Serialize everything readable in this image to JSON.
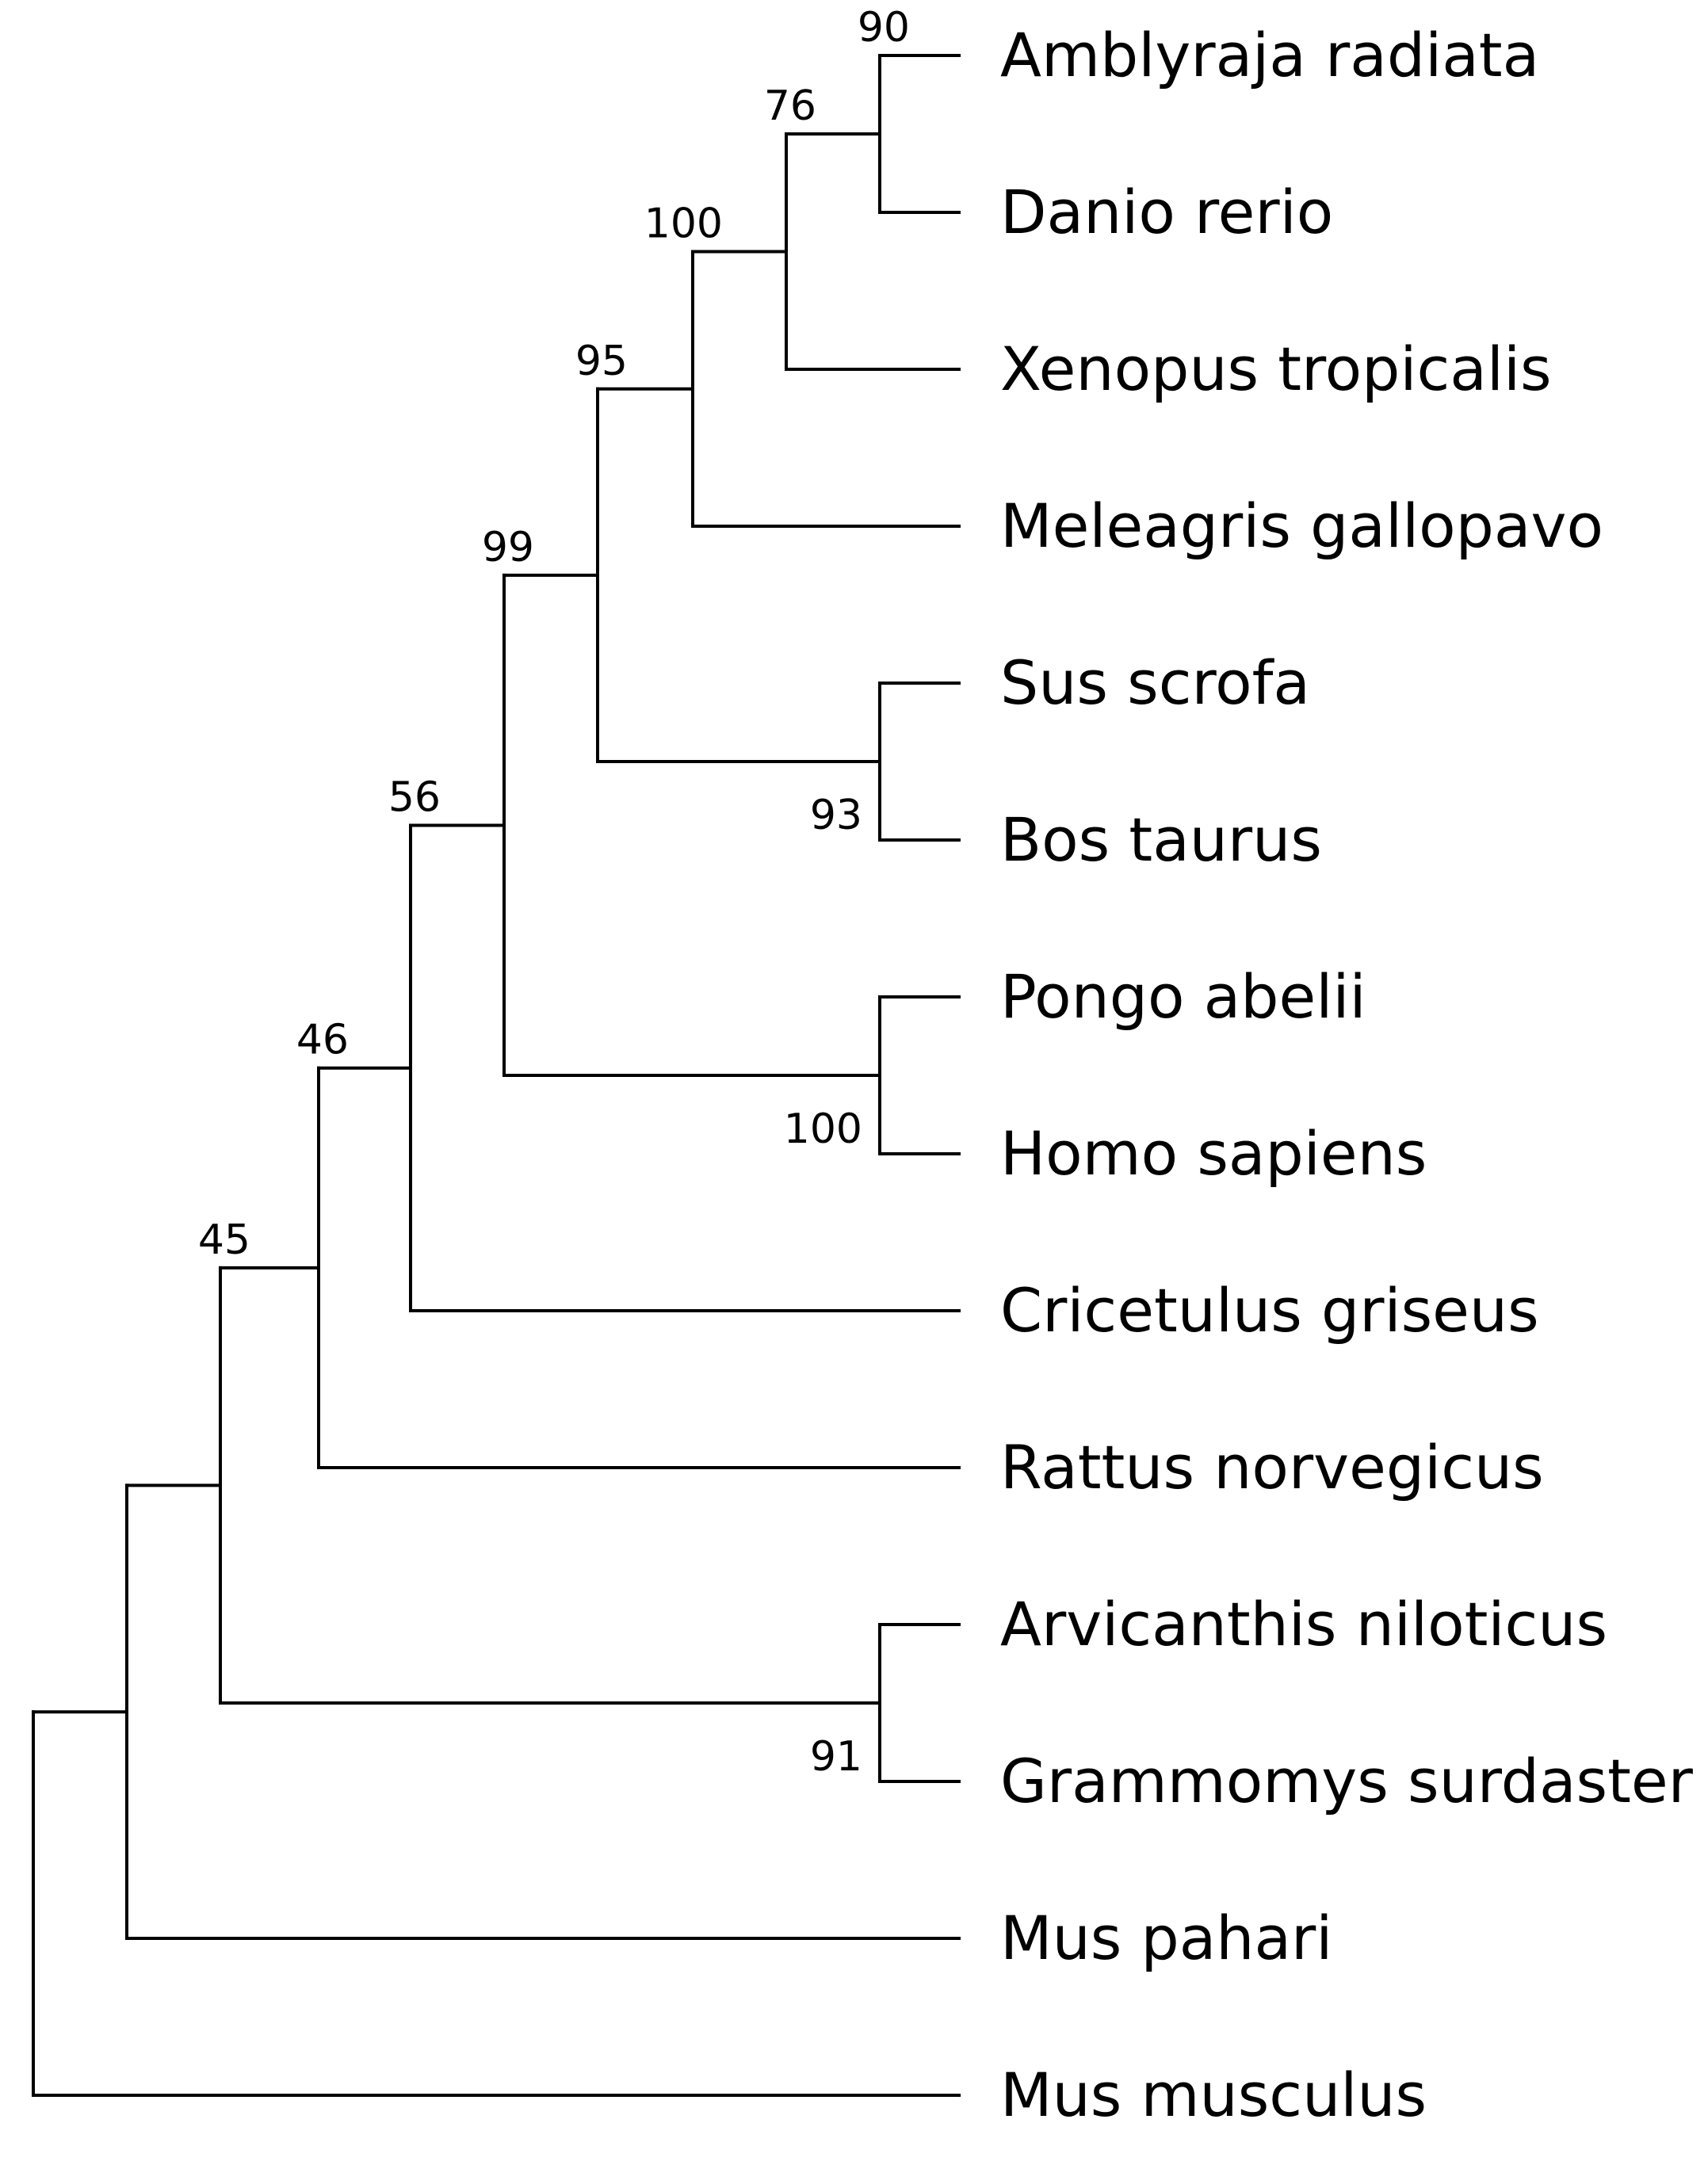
{
  "tree": {
    "leaves": [
      "Amblyraja radiata",
      "Danio rerio",
      "Xenopus tropicalis",
      "Meleagris gallopavo",
      "Sus scrofa",
      "Bos taurus",
      "Pongo abelii",
      "Homo sapiens",
      "Cricetulus griseus",
      "Rattus norvegicus",
      "Arvicanthis niloticus",
      "Grammomys surdaster",
      "Mus pahari",
      "Mus musculus"
    ],
    "nodes": [
      {
        "id": "n_amb_dan",
        "children": [
          0,
          1
        ],
        "support": "90"
      },
      {
        "id": "n_76",
        "children": [
          "n_amb_dan",
          2
        ],
        "support": "76"
      },
      {
        "id": "n_100a",
        "children": [
          "n_76",
          3
        ],
        "support": "100"
      },
      {
        "id": "n_sus_bos",
        "children": [
          4,
          5
        ],
        "support": "93"
      },
      {
        "id": "n_95",
        "children": [
          "n_100a",
          "n_sus_bos"
        ],
        "support": "95"
      },
      {
        "id": "n_pon_hom",
        "children": [
          6,
          7
        ],
        "support": "100"
      },
      {
        "id": "n_99",
        "children": [
          "n_95",
          "n_pon_hom"
        ],
        "support": "99"
      },
      {
        "id": "n_56",
        "children": [
          "n_99",
          8
        ],
        "support": "56"
      },
      {
        "id": "n_46",
        "children": [
          "n_56",
          9
        ],
        "support": "46"
      },
      {
        "id": "n_arv_gra",
        "children": [
          10,
          11
        ],
        "support": "91"
      },
      {
        "id": "n_45a",
        "children": [
          "n_46",
          "n_arv_gra"
        ],
        "support": "45"
      },
      {
        "id": "n_45b",
        "children": [
          "n_45a",
          12
        ],
        "support": ""
      },
      {
        "id": "root",
        "children": [
          "n_45b",
          13
        ],
        "support": ""
      }
    ]
  }
}
